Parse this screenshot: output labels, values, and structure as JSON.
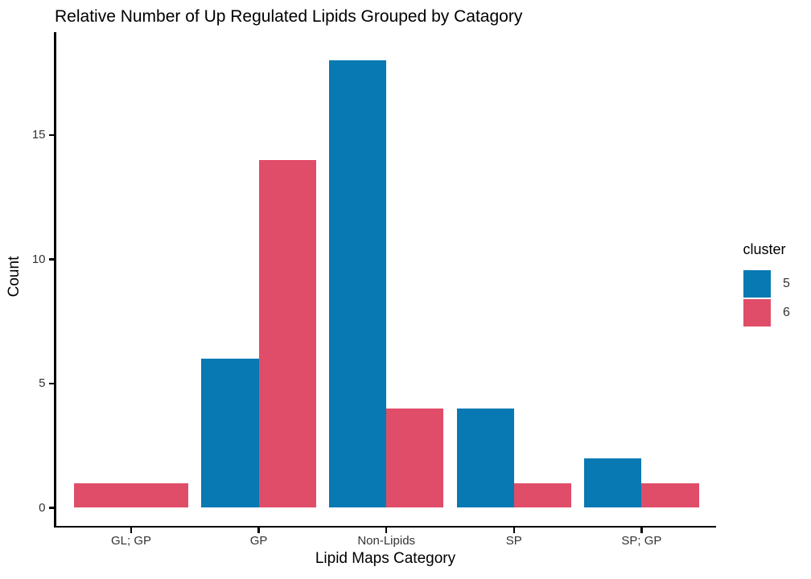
{
  "figure": {
    "background": "#ffffff"
  },
  "chart_data": {
    "type": "bar",
    "title": "Relative Number of Up Regulated Lipids Grouped by Catagory",
    "xlabel": "Lipid Maps Category",
    "ylabel": "Count",
    "categories": [
      "GL; GP",
      "GP",
      "Non-Lipids",
      "SP",
      "SP; GP"
    ],
    "series": [
      {
        "name": "5",
        "color": "#0879B2",
        "values": [
          null,
          6,
          18,
          4,
          2
        ]
      },
      {
        "name": "6",
        "color": "#E04D69",
        "values": [
          1,
          14,
          4,
          1,
          1
        ]
      }
    ],
    "legend": {
      "title": "cluster",
      "position": "right",
      "entries": [
        "5",
        "6"
      ]
    },
    "yticks": [
      0,
      5,
      10,
      15
    ],
    "ylim": [
      0,
      18.9
    ],
    "grid": false,
    "dodged": true,
    "single_bar_takes_full_group_width": true,
    "axis_color": "#000000",
    "tick_label_color": "#333333",
    "title_color": "#000000"
  }
}
